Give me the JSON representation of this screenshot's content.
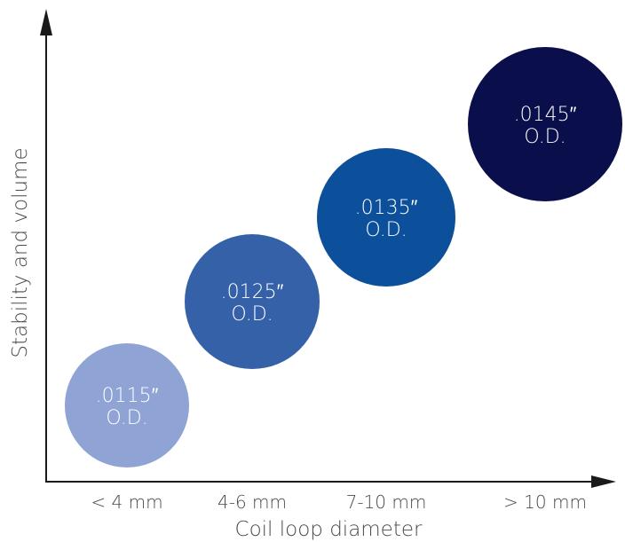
{
  "chart_data": {
    "type": "scatter",
    "title": "",
    "xlabel": "Coil loop diameter",
    "ylabel": "Stability and volume",
    "grid": false,
    "legend": "none",
    "categories": [
      "< 4 mm",
      "4-6 mm",
      "7-10 mm",
      "> 10 mm"
    ],
    "points": [
      {
        "category": "< 4 mm",
        "line1": ".0115″",
        "line2": "O.D.",
        "level": 1,
        "color": "#8fa3d4"
      },
      {
        "category": "4-6 mm",
        "line1": ".0125″",
        "line2": "O.D.",
        "level": 2,
        "color": "#3461a8"
      },
      {
        "category": "7-10 mm",
        "line1": ".0135″",
        "line2": "O.D.",
        "level": 3,
        "color": "#0c4f9a"
      },
      {
        "category": "> 10 mm",
        "line1": ".0145″",
        "line2": "O.D.",
        "level": 4,
        "color": "#0a0e4a"
      }
    ],
    "axis_color": "#1a1a1a"
  }
}
